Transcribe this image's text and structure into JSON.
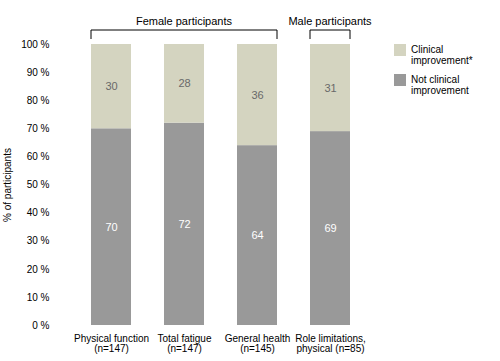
{
  "chart_data": {
    "type": "bar",
    "stacked": true,
    "categories": [
      "Physical function\n(n=147)",
      "Total fatigue\n(n=147)",
      "General health\n(n=145)",
      "Role limitations,\nphysical (n=85)"
    ],
    "series": [
      {
        "name": "Not clinical improvement",
        "color": "#999999",
        "values": [
          70,
          72,
          64,
          69
        ]
      },
      {
        "name": "Clinical improvement*",
        "color": "#d4d4c0",
        "values": [
          30,
          28,
          36,
          31
        ]
      }
    ],
    "ylabel": "% of participants",
    "ylim": [
      0,
      100
    ],
    "yticks": [
      {
        "value": 0,
        "label": "0 %"
      },
      {
        "value": 10,
        "label": "10 %"
      },
      {
        "value": 20,
        "label": "20 %"
      },
      {
        "value": 30,
        "label": "30 %"
      },
      {
        "value": 40,
        "label": "40 %"
      },
      {
        "value": 50,
        "label": "50 %"
      },
      {
        "value": 60,
        "label": "60 %"
      },
      {
        "value": 70,
        "label": "70 %"
      },
      {
        "value": 80,
        "label": "80 %"
      },
      {
        "value": 90,
        "label": "90 %"
      },
      {
        "value": 100,
        "label": "100 %"
      }
    ],
    "data_labels": true,
    "grid": false,
    "legend": "right",
    "annotations": [
      {
        "text": "Female participants",
        "from": "Physical function\n(n=147)",
        "to": "General health\n(n=145)"
      },
      {
        "text": "Male participants",
        "from": "Role limitations,\nphysical (n=85)",
        "to": "Role limitations,\nphysical (n=85)"
      }
    ]
  }
}
